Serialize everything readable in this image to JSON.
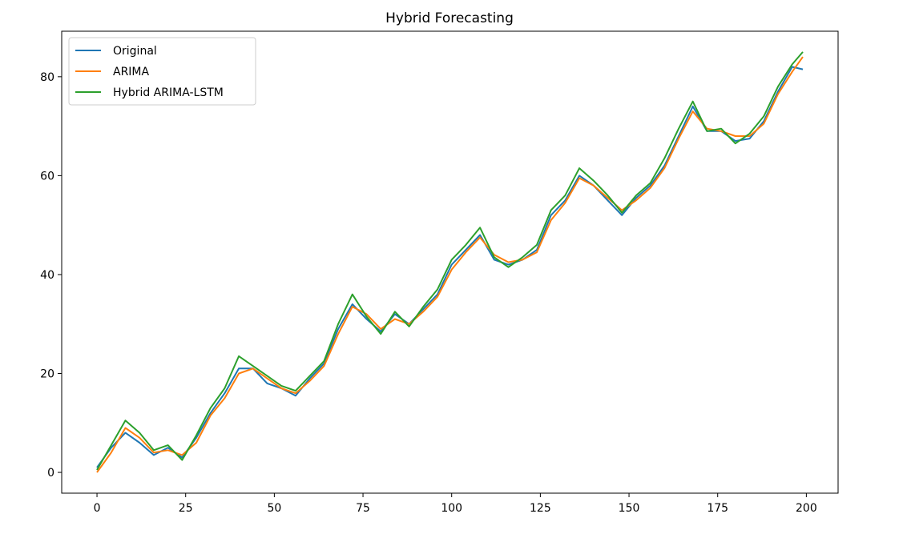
{
  "chart_data": {
    "type": "line",
    "title": "Hybrid Forecasting",
    "xlabel": "",
    "ylabel": "",
    "xlim": [
      -9.95,
      208.95
    ],
    "ylim": [
      -4.2,
      89.2
    ],
    "xticks": [
      0,
      25,
      50,
      75,
      100,
      125,
      150,
      175,
      200
    ],
    "yticks": [
      0,
      20,
      40,
      60,
      80
    ],
    "grid": false,
    "legend_position": "top-left",
    "series": [
      {
        "name": "Original",
        "color": "#1f77b4",
        "x": [
          0,
          4,
          8,
          12,
          16,
          20,
          24,
          28,
          32,
          36,
          40,
          44,
          48,
          52,
          56,
          60,
          64,
          68,
          72,
          76,
          80,
          84,
          88,
          92,
          96,
          100,
          104,
          108,
          112,
          116,
          120,
          124,
          128,
          132,
          136,
          140,
          144,
          148,
          152,
          156,
          160,
          164,
          168,
          172,
          176,
          180,
          184,
          188,
          192,
          196,
          199
        ],
        "values": [
          1.0,
          5.0,
          8.0,
          6.0,
          3.5,
          5.0,
          3.0,
          7.0,
          12.0,
          16.0,
          21.0,
          21.0,
          18.0,
          17.0,
          15.5,
          19.0,
          22.0,
          29.0,
          34.0,
          31.0,
          28.5,
          32.0,
          30.0,
          33.0,
          36.0,
          42.0,
          45.0,
          48.0,
          43.0,
          42.0,
          43.0,
          45.0,
          52.0,
          55.0,
          60.0,
          58.0,
          55.0,
          52.0,
          55.5,
          58.0,
          62.0,
          68.0,
          74.0,
          69.0,
          69.0,
          67.0,
          67.5,
          71.0,
          77.0,
          82.0,
          81.5
        ]
      },
      {
        "name": "ARIMA",
        "color": "#ff7f0e",
        "x": [
          0,
          4,
          8,
          12,
          16,
          20,
          24,
          28,
          32,
          36,
          40,
          44,
          48,
          52,
          56,
          60,
          64,
          68,
          72,
          76,
          80,
          84,
          88,
          92,
          96,
          100,
          104,
          108,
          112,
          116,
          120,
          124,
          128,
          132,
          136,
          140,
          144,
          148,
          152,
          156,
          160,
          164,
          168,
          172,
          176,
          180,
          184,
          188,
          192,
          196,
          199
        ],
        "values": [
          0.0,
          4.0,
          9.0,
          7.0,
          4.0,
          4.5,
          3.5,
          6.0,
          11.5,
          15.0,
          20.0,
          21.0,
          19.0,
          17.0,
          16.0,
          18.5,
          21.5,
          28.0,
          33.5,
          32.0,
          29.0,
          31.0,
          30.0,
          32.5,
          35.5,
          41.0,
          44.5,
          47.5,
          44.0,
          42.5,
          43.0,
          44.5,
          51.0,
          54.5,
          59.5,
          58.0,
          55.5,
          53.0,
          55.0,
          57.5,
          61.5,
          67.5,
          73.0,
          69.5,
          69.0,
          68.0,
          68.0,
          70.5,
          76.5,
          81.0,
          84.0
        ]
      },
      {
        "name": "Hybrid ARIMA-LSTM",
        "color": "#2ca02c",
        "x": [
          0,
          4,
          8,
          12,
          16,
          20,
          24,
          28,
          32,
          36,
          40,
          44,
          48,
          52,
          56,
          60,
          64,
          68,
          72,
          76,
          80,
          84,
          88,
          92,
          96,
          100,
          104,
          108,
          112,
          116,
          120,
          124,
          128,
          132,
          136,
          140,
          144,
          148,
          152,
          156,
          160,
          164,
          168,
          172,
          176,
          180,
          184,
          188,
          192,
          196,
          199
        ],
        "values": [
          0.5,
          5.5,
          10.5,
          8.0,
          4.5,
          5.5,
          2.5,
          7.5,
          13.0,
          17.0,
          23.5,
          21.5,
          19.5,
          17.5,
          16.5,
          19.5,
          22.5,
          30.0,
          36.0,
          31.5,
          28.0,
          32.5,
          29.5,
          33.5,
          37.0,
          43.0,
          46.0,
          49.5,
          43.5,
          41.5,
          43.5,
          46.0,
          53.0,
          56.0,
          61.5,
          59.0,
          56.0,
          52.5,
          56.0,
          58.5,
          63.5,
          69.5,
          75.0,
          69.0,
          69.5,
          66.5,
          68.5,
          72.0,
          78.0,
          82.5,
          85.0
        ]
      }
    ]
  }
}
